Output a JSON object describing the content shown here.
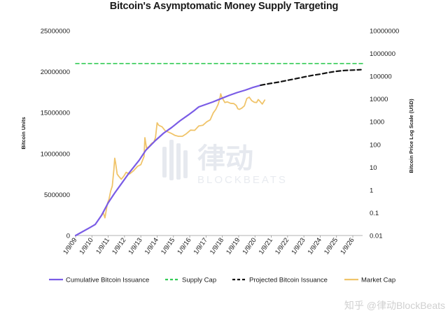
{
  "chart_data": {
    "type": "line",
    "title": "Bitcoin's Asymptomatic Money Supply Targeting",
    "ylabel_left": "Bitcoin Units",
    "ylabel_right": "Bitcoin Price Log Scale (USD)",
    "x_tick_labels": [
      "1/9/09",
      "1/9/10",
      "1/9/11",
      "1/9/12",
      "1/9/13",
      "1/9/14",
      "1/9/15",
      "1/9/16",
      "1/9/17",
      "1/9/18",
      "1/9/19",
      "1/9/20",
      "1/9/21",
      "1/9/22",
      "1/9/23",
      "1/9/24",
      "1/9/25",
      "1/9/26"
    ],
    "y_left_ticks": [
      0,
      5000000,
      10000000,
      15000000,
      20000000,
      25000000
    ],
    "y_left_tick_labels": [
      "0",
      "5000000",
      "10000000",
      "15000000",
      "20000000",
      "25000000"
    ],
    "y_left_range": [
      0,
      25000000
    ],
    "y_right_ticks": [
      0.01,
      0.1,
      1,
      10,
      100,
      1000,
      10000,
      100000,
      1000000,
      10000000
    ],
    "y_right_tick_labels": [
      "0.01",
      "0.1",
      "1",
      "10",
      "100",
      "1000",
      "10000",
      "100000",
      "1000000",
      "10000000"
    ],
    "y_right_range": [
      0.01,
      10000000
    ],
    "y_right_scale": "log",
    "x_range": [
      2009,
      2026.6
    ],
    "grid": false,
    "legend_position": "bottom",
    "colors": {
      "issuance": "#7a5ce6",
      "supply_cap": "#33cc55",
      "projected": "#111111",
      "market": "#f0c46a"
    },
    "series": [
      {
        "name": "Cumulative Bitcoin Issuance",
        "axis": "left",
        "x": [
          2009.0,
          2009.9,
          2010.2,
          2010.6,
          2011.0,
          2011.4,
          2011.8,
          2012.3,
          2012.9,
          2013.3,
          2013.9,
          2014.4,
          2014.9,
          2015.4,
          2015.9,
          2016.3,
          2016.55,
          2016.9,
          2017.4,
          2017.9,
          2018.4,
          2018.9,
          2019.4,
          2019.9,
          2020.35
        ],
        "y": [
          0,
          1000000,
          1350000,
          2500000,
          4000000,
          5200000,
          6300000,
          7700000,
          9200000,
          10400000,
          11600000,
          12500000,
          13200000,
          14000000,
          14700000,
          15300000,
          15700000,
          15950000,
          16300000,
          16700000,
          17100000,
          17450000,
          17750000,
          18100000,
          18350000
        ]
      },
      {
        "name": "Projected Bitcoin Issuance",
        "axis": "left",
        "x": [
          2020.35,
          2020.9,
          2021.5,
          2022.0,
          2022.5,
          2023.0,
          2023.5,
          2024.0,
          2024.5,
          2025.0,
          2025.5,
          2026.0,
          2026.5
        ],
        "y": [
          18350000,
          18550000,
          18750000,
          18950000,
          19150000,
          19350000,
          19550000,
          19700000,
          19900000,
          20050000,
          20150000,
          20200000,
          20250000
        ]
      },
      {
        "name": "Supply Cap",
        "axis": "left",
        "x": [
          2009.0,
          2026.6
        ],
        "y": [
          21000000,
          21000000
        ]
      },
      {
        "name": "Market Cap",
        "axis": "right",
        "x": [
          2010.55,
          2010.7,
          2010.8,
          2010.95,
          2011.05,
          2011.15,
          2011.25,
          2011.35,
          2011.4,
          2011.45,
          2011.55,
          2011.65,
          2011.8,
          2011.95,
          2012.1,
          2012.3,
          2012.55,
          2012.8,
          2013.0,
          2013.2,
          2013.25,
          2013.35,
          2013.5,
          2013.65,
          2013.8,
          2013.9,
          2014.0,
          2014.1,
          2014.3,
          2014.5,
          2014.7,
          2014.9,
          2015.1,
          2015.3,
          2015.55,
          2015.8,
          2016.05,
          2016.3,
          2016.55,
          2016.8,
          2017.05,
          2017.25,
          2017.45,
          2017.6,
          2017.75,
          2017.85,
          2017.9,
          2017.95,
          2018.05,
          2018.15,
          2018.3,
          2018.5,
          2018.7,
          2018.85,
          2018.95,
          2019.05,
          2019.2,
          2019.35,
          2019.5,
          2019.65,
          2019.8,
          2019.95,
          2020.1,
          2020.2,
          2020.3,
          2020.45,
          2020.6
        ],
        "y": [
          0.07,
          0.1,
          0.06,
          0.25,
          0.4,
          0.9,
          1.5,
          8,
          25,
          16,
          5,
          4,
          3,
          4,
          6,
          5,
          7,
          11,
          13,
          30,
          200,
          70,
          80,
          110,
          130,
          200,
          900,
          700,
          600,
          400,
          350,
          300,
          250,
          230,
          230,
          300,
          430,
          420,
          650,
          700,
          1000,
          1200,
          2500,
          3500,
          6000,
          11000,
          17000,
          13000,
          9500,
          7000,
          7500,
          6500,
          6300,
          5200,
          3700,
          3500,
          4000,
          5000,
          10500,
          12000,
          8500,
          7200,
          7000,
          9500,
          8000,
          6000,
          9000
        ]
      }
    ]
  },
  "legend": {
    "items": [
      {
        "label": "Cumulative Bitcoin Issuance",
        "style": "solid",
        "color": "#7a5ce6"
      },
      {
        "label": "Supply Cap",
        "style": "dashed",
        "color": "#33cc55"
      },
      {
        "label": "Projected Bitcoin Issuance",
        "style": "dashed",
        "color": "#111111"
      },
      {
        "label": "Market Cap",
        "style": "solid",
        "color": "#f0c46a"
      }
    ]
  },
  "watermark": {
    "logo": "律动",
    "logo_sub": "BLOCKBEATS",
    "credit": "知乎 @律动BlockBeats"
  }
}
